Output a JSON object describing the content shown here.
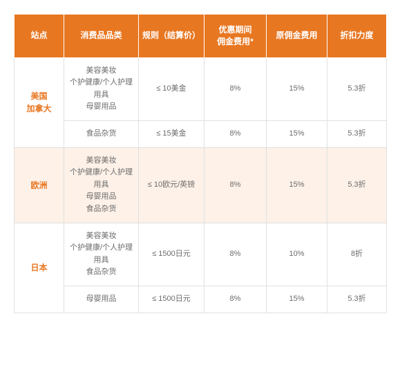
{
  "columns": [
    {
      "label": "站点"
    },
    {
      "label": "消费品品类"
    },
    {
      "label": "规则（结算价）"
    },
    {
      "label": "优惠期间\n佣金费用*"
    },
    {
      "label": "原佣金费用"
    },
    {
      "label": "折扣力度"
    }
  ],
  "rows": [
    {
      "stripe": false,
      "region": "美国\n加拿大",
      "region_rowspan": 2,
      "category": "美容美妆\n个护健康/个人护理用具\n母婴用品",
      "rule": "≤ 10美金",
      "promo_fee": "8%",
      "orig_fee": "15%",
      "discount": "5.3折"
    },
    {
      "stripe": false,
      "category": "食品杂货",
      "rule": "≤ 15美金",
      "promo_fee": "8%",
      "orig_fee": "15%",
      "discount": "5.3折"
    },
    {
      "stripe": true,
      "region": "欧洲",
      "region_rowspan": 1,
      "category": "美容美妆\n个护健康/个人护理用具\n母婴用品\n食品杂货",
      "rule": "≤ 10欧元/英镑",
      "promo_fee": "8%",
      "orig_fee": "15%",
      "discount": "5.3折"
    },
    {
      "stripe": false,
      "region": "日本",
      "region_rowspan": 2,
      "category": "美容美妆\n个护健康/个人护理用具\n食品杂货",
      "rule": "≤ 1500日元",
      "promo_fee": "8%",
      "orig_fee": "10%",
      "discount": "8折"
    },
    {
      "stripe": false,
      "category": "母婴用品",
      "rule": "≤ 1500日元",
      "promo_fee": "8%",
      "orig_fee": "15%",
      "discount": "5.3折"
    }
  ],
  "styling": {
    "header_bg": "#e87722",
    "header_text": "#ffffff",
    "region_text": "#e87722",
    "body_text": "#6b6b6b",
    "stripe_bg": "#fdf1e8",
    "border_color": "#e0e0e0",
    "header_fontsize_pt": 12,
    "body_fontsize_pt": 11
  }
}
